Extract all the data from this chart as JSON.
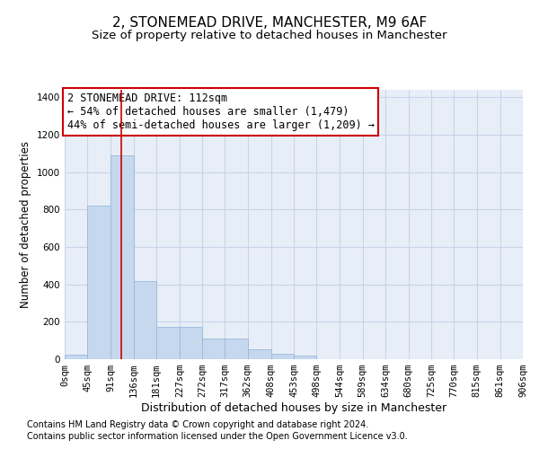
{
  "title1": "2, STONEMEAD DRIVE, MANCHESTER, M9 6AF",
  "title2": "Size of property relative to detached houses in Manchester",
  "xlabel": "Distribution of detached houses by size in Manchester",
  "ylabel": "Number of detached properties",
  "bar_color": "#c5d8ee",
  "bar_edge_color": "#9ab8d8",
  "bin_edges": [
    0,
    45,
    91,
    136,
    181,
    227,
    272,
    317,
    362,
    408,
    453,
    498,
    544,
    589,
    634,
    680,
    725,
    770,
    815,
    861,
    906
  ],
  "bar_heights": [
    25,
    820,
    1090,
    420,
    175,
    175,
    110,
    110,
    55,
    30,
    20,
    0,
    0,
    0,
    0,
    0,
    0,
    0,
    0,
    0
  ],
  "tick_labels": [
    "0sqm",
    "45sqm",
    "91sqm",
    "136sqm",
    "181sqm",
    "227sqm",
    "272sqm",
    "317sqm",
    "362sqm",
    "408sqm",
    "453sqm",
    "498sqm",
    "544sqm",
    "589sqm",
    "634sqm",
    "680sqm",
    "725sqm",
    "770sqm",
    "815sqm",
    "861sqm",
    "906sqm"
  ],
  "ylim": [
    0,
    1440
  ],
  "yticks": [
    0,
    200,
    400,
    600,
    800,
    1000,
    1200,
    1400
  ],
  "property_line_x": 112,
  "annotation_text": "2 STONEMEAD DRIVE: 112sqm\n← 54% of detached houses are smaller (1,479)\n44% of semi-detached houses are larger (1,209) →",
  "footnote1": "Contains HM Land Registry data © Crown copyright and database right 2024.",
  "footnote2": "Contains public sector information licensed under the Open Government Licence v3.0.",
  "bg_color": "#ffffff",
  "plot_bg_color": "#e8eef8",
  "grid_color": "#c8d4e8",
  "annotation_box_color": "#ffffff",
  "annotation_box_edge": "#cc0000",
  "red_line_color": "#cc0000",
  "title1_fontsize": 11,
  "title2_fontsize": 9.5,
  "xlabel_fontsize": 9,
  "ylabel_fontsize": 8.5,
  "tick_fontsize": 7.5,
  "annotation_fontsize": 8.5,
  "footnote_fontsize": 7
}
